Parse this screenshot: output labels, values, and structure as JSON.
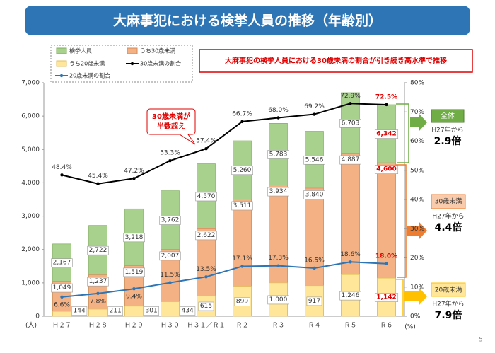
{
  "chart_data": {
    "type": "bar",
    "title": "大麻事犯における検挙人員の推移（年齢別）",
    "subtitle": "大麻事犯の検挙人員における30歳未満の割合が引き続き高水準で推移",
    "y_unit_label": "(人)",
    "y2_unit_label": "(%)",
    "categories": [
      "Ｈ２７",
      "Ｈ２８",
      "Ｈ２９",
      "Ｈ３０",
      "Ｈ３１／Ｒ１",
      "Ｒ２",
      "Ｒ３",
      "Ｒ４",
      "Ｒ５",
      "Ｒ６"
    ],
    "series": [
      {
        "name": "検挙人員",
        "type": "bar",
        "color": "#a9d18e",
        "values": [
          2167,
          2722,
          3218,
          3762,
          4570,
          5260,
          5783,
          5546,
          6703,
          6342
        ],
        "value_labels": [
          "2,167",
          "2,722",
          "3,218",
          "3,762",
          "4,570",
          "5,260",
          "5,783",
          "5,546",
          "6,703",
          "6,342"
        ]
      },
      {
        "name": "うち30歳未満",
        "type": "bar",
        "color": "#f4b183",
        "values": [
          1049,
          1237,
          1519,
          2007,
          2622,
          3511,
          3934,
          3840,
          4887,
          4600
        ],
        "value_labels": [
          "1,049",
          "1,237",
          "1,519",
          "2,007",
          "2,622",
          "3,511",
          "3,934",
          "3,840",
          "4,887",
          "4,600"
        ]
      },
      {
        "name": "うち20歳未満",
        "type": "bar",
        "color": "#ffe699",
        "values": [
          144,
          211,
          301,
          434,
          615,
          899,
          1000,
          917,
          1246,
          1142
        ],
        "value_labels": [
          "144",
          "211",
          "301",
          "434",
          "615",
          "899",
          "1,000",
          "917",
          "1,246",
          "1,142"
        ]
      },
      {
        "name": "30歳未満の割合",
        "type": "line",
        "axis": "y2",
        "color": "#000000",
        "values": [
          48.4,
          45.4,
          47.2,
          53.3,
          57.4,
          66.7,
          68.0,
          69.2,
          72.9,
          72.5
        ],
        "value_labels": [
          "48.4%",
          "45.4%",
          "47.2%",
          "53.3%",
          "57.4%",
          "66.7%",
          "68.0%",
          "69.2%",
          "72.9%",
          "72.5%"
        ]
      },
      {
        "name": "20歳未満の割合",
        "type": "line",
        "axis": "y2",
        "color": "#2e75b6",
        "values": [
          6.6,
          7.8,
          9.4,
          11.5,
          13.5,
          17.1,
          17.3,
          16.5,
          18.6,
          18.0
        ],
        "value_labels": [
          "6.6%",
          "7.8%",
          "9.4%",
          "11.5%",
          "13.5%",
          "17.1%",
          "17.3%",
          "16.5%",
          "18.6%",
          "18.0%"
        ]
      }
    ],
    "ylim": [
      0,
      7000
    ],
    "yticks": [
      0,
      {
        "value": 1000,
        "label": "1,000"
      },
      {
        "value": 2000,
        "label": "2,000"
      },
      {
        "value": 3000,
        "label": "3,000"
      },
      {
        "value": 4000,
        "label": "4,000"
      },
      {
        "value": 5000,
        "label": "5,000"
      },
      {
        "value": 6000,
        "label": "6,000"
      },
      {
        "value": 7000,
        "label": "7,000"
      }
    ],
    "y2lim": [
      0,
      80
    ],
    "y2ticks": [
      {
        "value": 0,
        "label": "0%"
      },
      {
        "value": 10,
        "label": "10%"
      },
      {
        "value": 20,
        "label": "20%"
      },
      {
        "value": 30,
        "label": "30%"
      },
      {
        "value": 40,
        "label": "40%"
      },
      {
        "value": 50,
        "label": "50%"
      },
      {
        "value": 60,
        "label": "60%"
      },
      {
        "value": 70,
        "label": "70%"
      },
      {
        "value": 80,
        "label": "80%"
      }
    ],
    "grid": false,
    "callout": [
      "30歳未満が",
      "半数超え"
    ],
    "side_notes": [
      {
        "label": "全体",
        "text": "H27年から",
        "ratio": "2.9倍"
      },
      {
        "label": "30歳未満",
        "text": "H27年から",
        "ratio": "4.4倍"
      },
      {
        "label": "20歳未満",
        "text": "H27年から",
        "ratio": "7.9倍"
      }
    ],
    "page_number": "5"
  }
}
